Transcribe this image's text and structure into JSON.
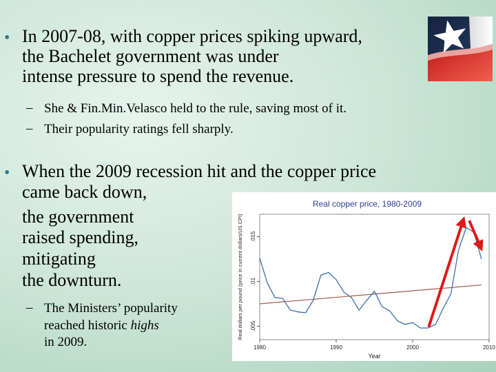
{
  "bullets": [
    {
      "lines": [
        "In 2007-08, with copper prices spiking upward,",
        "the Bachelet government was under",
        "intense pressure to spend the revenue."
      ],
      "subs": [
        "She & Fin.Min.Velasco held to the rule, saving most of it.",
        "Their popularity ratings fell sharply."
      ]
    },
    {
      "lines": [
        "When the 2009 recession hit and the copper price",
        "came back down,",
        "the government",
        "raised spending,",
        "mitigating",
        "the downturn."
      ],
      "sub_parts": [
        "The Ministers’ popularity",
        "reached historic ",
        "highs",
        "in 2009."
      ]
    }
  ],
  "bullet_char": "•",
  "dash_char": "–",
  "flag_icon": "chile-flag-star-icon",
  "colors": {
    "bullet": "#2a7a8f",
    "series": "#3b6fa8",
    "trend": "#a05a50",
    "arrow": "#e01818",
    "chart_title": "#2d3f8f"
  },
  "chart_data": {
    "type": "line",
    "title": "Real copper price, 1980-2009",
    "ylabel": "Real dollars per pound (price in current dollars/US CPI)",
    "xlabel": "Year",
    "x_ticks": [
      1980,
      1990,
      2000,
      2010
    ],
    "y_ticks": [
      ".005",
      ".01",
      ".015"
    ],
    "xlim": [
      1980,
      2010
    ],
    "ylim": [
      0.0035,
      0.0175
    ],
    "series": [
      {
        "x": [
          1980,
          1981,
          1982,
          1983,
          1984,
          1985,
          1986,
          1987,
          1988,
          1989,
          1990,
          1991,
          1992,
          1993,
          1994,
          1995,
          1996,
          1997,
          1998,
          1999,
          2000,
          2001,
          2002,
          2003,
          2004,
          2005,
          2006,
          2007,
          2008,
          2009
        ],
        "values": [
          0.0126,
          0.0098,
          0.0082,
          0.0081,
          0.0068,
          0.0066,
          0.0065,
          0.0079,
          0.0107,
          0.011,
          0.0102,
          0.0088,
          0.0082,
          0.0068,
          0.0079,
          0.0089,
          0.0072,
          0.0067,
          0.0056,
          0.0052,
          0.0054,
          0.0048,
          0.0048,
          0.0052,
          0.007,
          0.0086,
          0.0135,
          0.016,
          0.0155,
          0.0125
        ]
      }
    ],
    "trend": {
      "x": [
        1980,
        2009
      ],
      "values": [
        0.0075,
        0.0096
      ]
    },
    "arrows": [
      {
        "from": [
          2002.1,
          0.0049
        ],
        "to": [
          2006.6,
          0.0168
        ]
      },
      {
        "from": [
          2007.4,
          0.0168
        ],
        "to": [
          2008.9,
          0.0138
        ]
      }
    ]
  }
}
